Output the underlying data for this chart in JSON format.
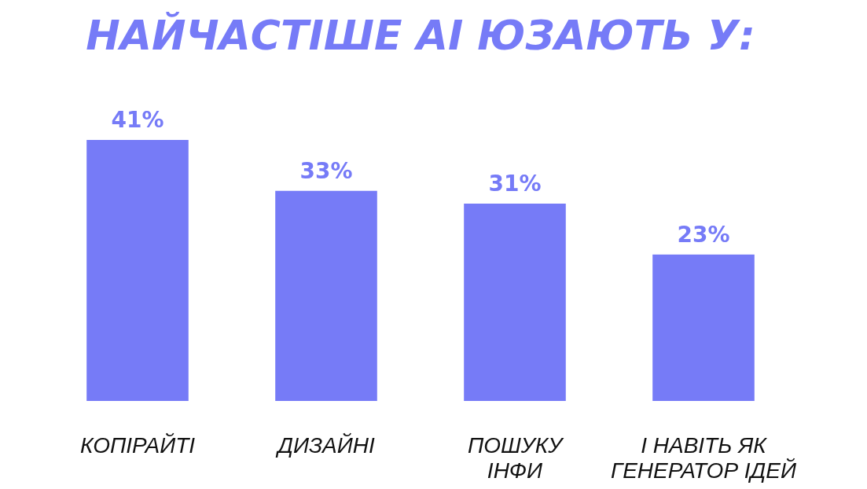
{
  "chart_data": {
    "type": "bar",
    "title": "НАЙЧАСТІШЕ АІ ЮЗАЮТЬ У:",
    "categories": [
      "КОПІРАЙТІ",
      "ДИЗАЙНІ",
      "ПОШУКУ ІНФИ",
      "І НАВІТЬ ЯК ГЕНЕРАТОР ІДЕЙ"
    ],
    "values": [
      41,
      33,
      31,
      23
    ],
    "value_labels": [
      "41%",
      "33%",
      "31%",
      "23%"
    ],
    "color": "#767bf7"
  }
}
